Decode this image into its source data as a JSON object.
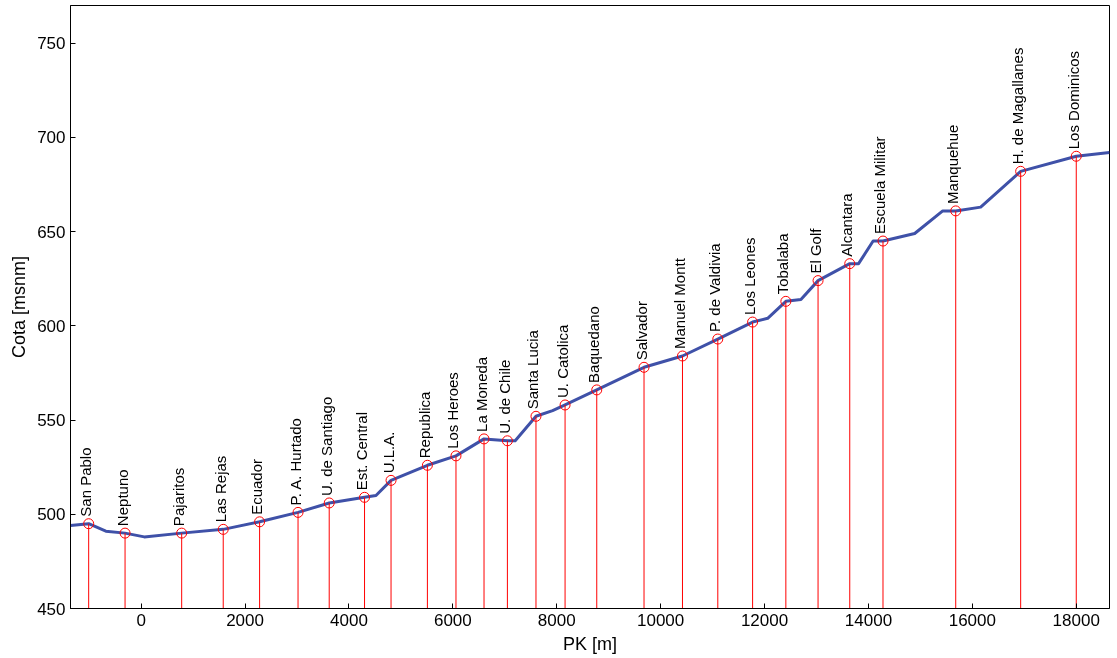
{
  "chart_data": {
    "type": "line",
    "xlabel": "PK [m]",
    "ylabel": "Cota [msnm]",
    "xlim": [
      -1360,
      18640
    ],
    "ylim": [
      450,
      770
    ],
    "xticks": [
      0,
      2000,
      4000,
      6000,
      8000,
      10000,
      12000,
      14000,
      16000,
      18000
    ],
    "yticks": [
      450,
      500,
      550,
      600,
      650,
      700,
      750
    ],
    "grid": false,
    "series": [
      {
        "color": "#3f51a8",
        "marker": "none",
        "x": [
          -1360,
          -1010,
          -680,
          -310,
          60,
          780,
          1580,
          2280,
          3020,
          3620,
          4300,
          4520,
          4810,
          5510,
          6060,
          6600,
          7050,
          7200,
          7600,
          7920,
          8160,
          8770,
          9680,
          10420,
          11100,
          11770,
          12060,
          12410,
          12700,
          13030,
          13640,
          13810,
          14090,
          14280,
          14890,
          15430,
          15680,
          16160,
          16930,
          18000,
          18640
        ],
        "values": [
          494,
          495,
          491,
          490,
          488,
          490,
          492,
          496,
          501,
          506,
          509,
          510,
          518,
          526,
          531,
          540,
          539,
          539,
          552,
          555,
          558,
          566,
          578,
          584,
          593,
          602,
          604,
          613,
          614,
          624,
          633,
          633,
          645,
          645,
          649,
          661,
          661,
          663,
          682,
          690,
          692
        ]
      },
      {
        "type": "lollipop",
        "color": "#ff0000",
        "marker": "circle",
        "x": [
          -1010,
          -310,
          780,
          1580,
          2280,
          3020,
          3620,
          4300,
          4810,
          5510,
          6060,
          6600,
          7050,
          7600,
          8160,
          8770,
          9680,
          10420,
          11100,
          11770,
          12410,
          13030,
          13640,
          14280,
          15680,
          16930,
          18000
        ],
        "values": [
          495,
          490,
          490,
          492,
          496,
          501,
          506,
          509,
          518,
          526,
          531,
          540,
          539,
          552,
          558,
          566,
          578,
          584,
          593,
          602,
          613,
          624,
          633,
          645,
          661,
          682,
          690
        ]
      }
    ],
    "annotations": [
      {
        "text": "San Pablo",
        "x": -1010,
        "y": 495
      },
      {
        "text": "Neptuno",
        "x": -310,
        "y": 490
      },
      {
        "text": "Pajaritos",
        "x": 780,
        "y": 490
      },
      {
        "text": "Las Rejas",
        "x": 1580,
        "y": 492
      },
      {
        "text": "Ecuador",
        "x": 2280,
        "y": 496
      },
      {
        "text": "P. A. Hurtado",
        "x": 3020,
        "y": 501
      },
      {
        "text": "U. de Santiago",
        "x": 3620,
        "y": 506
      },
      {
        "text": "Est. Central",
        "x": 4300,
        "y": 509
      },
      {
        "text": "U.L.A.",
        "x": 4810,
        "y": 518
      },
      {
        "text": "Republica",
        "x": 5510,
        "y": 526
      },
      {
        "text": "Los Heroes",
        "x": 6060,
        "y": 531
      },
      {
        "text": "La Moneda",
        "x": 6600,
        "y": 540
      },
      {
        "text": "U. de Chile",
        "x": 7050,
        "y": 539
      },
      {
        "text": "Santa Lucia",
        "x": 7600,
        "y": 552
      },
      {
        "text": "U. Catolica",
        "x": 8160,
        "y": 558
      },
      {
        "text": "Baquedano",
        "x": 8770,
        "y": 566
      },
      {
        "text": "Salvador",
        "x": 9680,
        "y": 578
      },
      {
        "text": "Manuel Montt",
        "x": 10420,
        "y": 584
      },
      {
        "text": "P. de Valdivia",
        "x": 11100,
        "y": 593
      },
      {
        "text": "Los Leones",
        "x": 11770,
        "y": 602
      },
      {
        "text": "Tobalaba",
        "x": 12410,
        "y": 613
      },
      {
        "text": "El Golf",
        "x": 13030,
        "y": 624
      },
      {
        "text": "Alcantara",
        "x": 13640,
        "y": 633
      },
      {
        "text": "Escuela Militar",
        "x": 14280,
        "y": 645
      },
      {
        "text": "Manquehue",
        "x": 15680,
        "y": 661
      },
      {
        "text": "H. de Magallanes",
        "x": 16930,
        "y": 682
      },
      {
        "text": "Los Dominicos",
        "x": 18000,
        "y": 690
      }
    ]
  }
}
